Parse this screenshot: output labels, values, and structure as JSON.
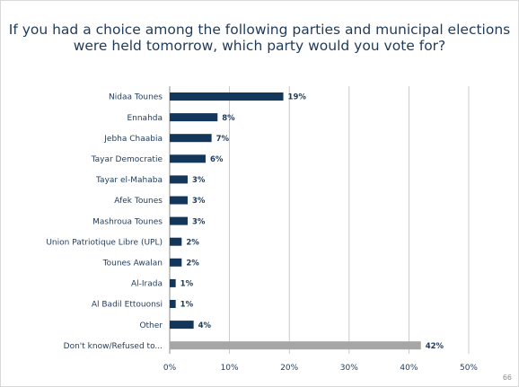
{
  "title_lines": [
    "If you had a choice among the following parties and municipal elections",
    "were held tomorrow, which party would you vote for?"
  ],
  "page_number": "66",
  "chart_data": {
    "type": "bar",
    "orientation": "horizontal",
    "title": "If you had a choice among the following parties and municipal elections were held tomorrow, which party would you vote for?",
    "categories": [
      "Nidaa Tounes",
      "Ennahda",
      "Jebha Chaabia",
      "Tayar Democratie",
      "Tayar el-Mahaba",
      "Afek Tounes",
      "Mashroua Tounes",
      "Union Patriotique Libre (UPL)",
      "Tounes Awalan",
      "Al-Irada",
      "Al Badil Ettouonsi",
      "Other",
      "Don't know/Refused to..."
    ],
    "values": [
      19,
      8,
      7,
      6,
      3,
      3,
      3,
      2,
      2,
      1,
      1,
      4,
      42
    ],
    "value_labels": [
      "19%",
      "8%",
      "7%",
      "6%",
      "3%",
      "3%",
      "3%",
      "2%",
      "2%",
      "1%",
      "1%",
      "4%",
      "42%"
    ],
    "xlim": [
      0,
      50
    ],
    "xticks": [
      0,
      10,
      20,
      30,
      40,
      50
    ],
    "xtick_labels": [
      "0%",
      "10%",
      "20%",
      "30%",
      "40%",
      "50%"
    ],
    "grid": true,
    "colors": {
      "bar": "#13375a",
      "bar_highlight": "#a6a6a6",
      "grid": "#bfbfbf",
      "text": "#1f3a5a"
    },
    "highlight_index": 12
  }
}
